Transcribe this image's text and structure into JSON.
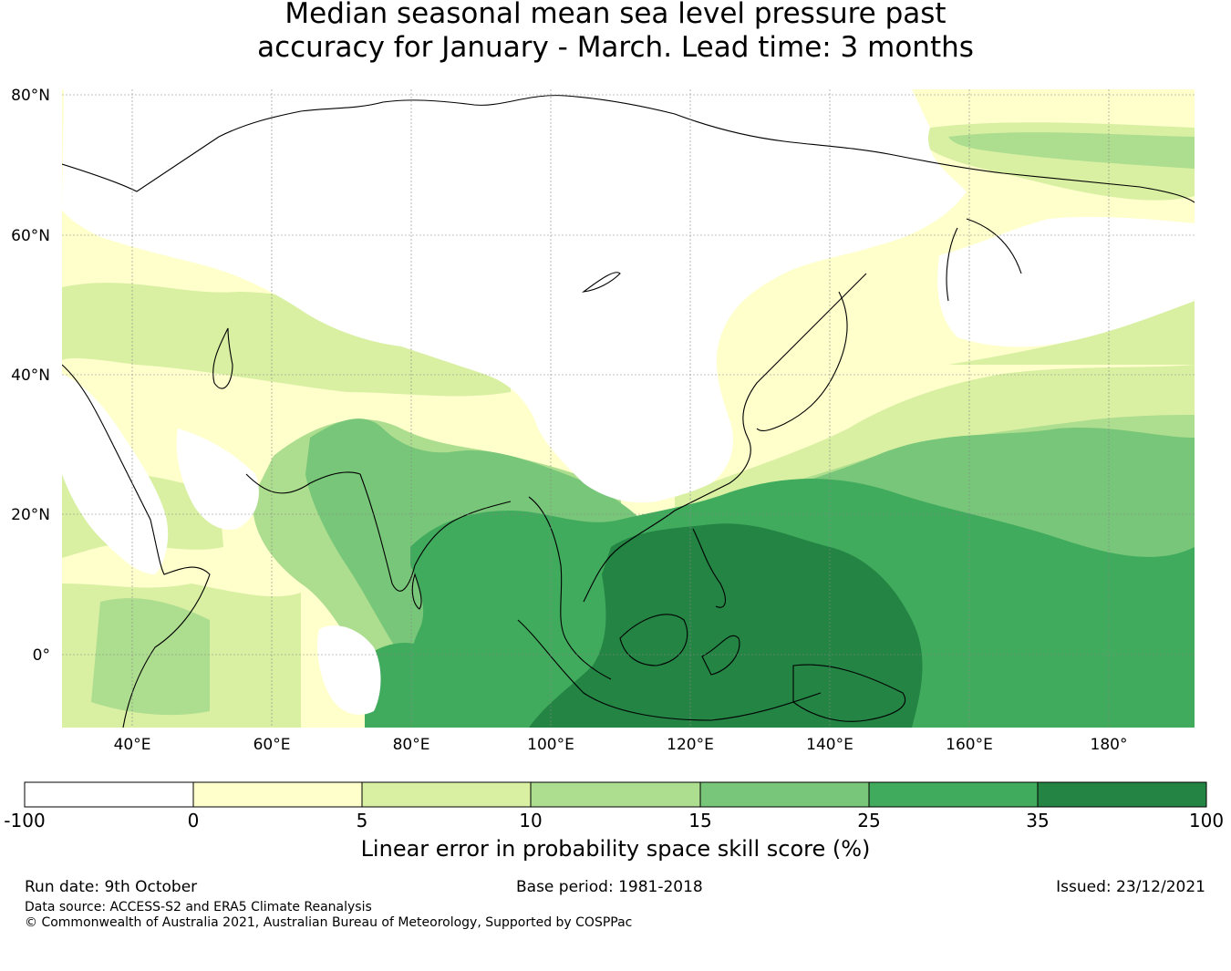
{
  "title": {
    "line1": "Median seasonal mean sea level pressure past",
    "line2": "accuracy for January - March. Lead time: 3 months"
  },
  "map": {
    "lat_labels": [
      "80°N",
      "60°N",
      "40°N",
      "20°N",
      "0°"
    ],
    "lon_labels": [
      "40°E",
      "60°E",
      "80°E",
      "100°E",
      "120°E",
      "140°E",
      "160°E",
      "180°"
    ],
    "lat_range": [
      -10,
      80
    ],
    "lon_range": [
      30,
      192
    ]
  },
  "colorbar": {
    "title": "Linear error in probability space skill score (%)",
    "ticks": [
      "-100",
      "0",
      "5",
      "10",
      "15",
      "25",
      "35",
      "100"
    ],
    "colors": [
      "#ffffff",
      "#ffffcc",
      "#d9f0a3",
      "#addd8e",
      "#78c679",
      "#41ab5d",
      "#238443"
    ]
  },
  "footer": {
    "run_date": "Run date: 9th October",
    "base_period": "Base period: 1981-2018",
    "issued": "Issued: 23/12/2021",
    "data_source": "Data source: ACCESS-S2 and ERA5 Climate Reanalysis",
    "copyright": "© Commonwealth of Australia 2021, Australian Bureau of Meteorology, Supported by COSPPac"
  }
}
